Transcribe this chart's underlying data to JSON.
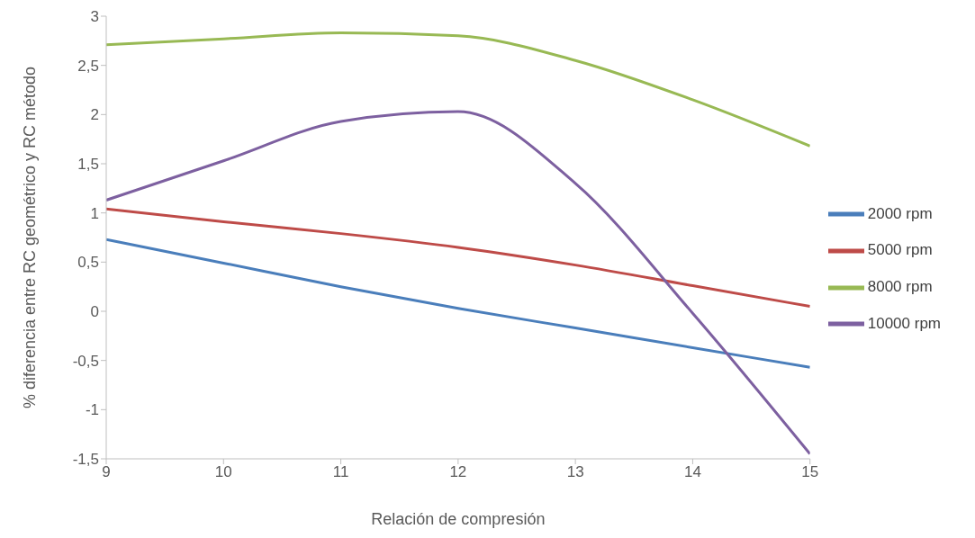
{
  "chart_data": {
    "type": "line",
    "xlabel": "Relación de compresión",
    "ylabel": "% diferencia entre RC geométrico y RC método",
    "x": [
      9,
      10,
      11,
      12,
      13,
      14,
      15
    ],
    "series": [
      {
        "name": "2000 rpm",
        "color": "#4a7ebb",
        "values": [
          0.73,
          0.49,
          0.25,
          0.03,
          -0.17,
          -0.37,
          -0.57
        ]
      },
      {
        "name": "5000 rpm",
        "color": "#be4b48",
        "values": [
          1.04,
          0.91,
          0.79,
          0.65,
          0.47,
          0.26,
          0.05
        ]
      },
      {
        "name": "8000 rpm",
        "color": "#98b954",
        "values": [
          2.71,
          2.77,
          2.83,
          2.8,
          2.55,
          2.15,
          1.68
        ]
      },
      {
        "name": "10000 rpm",
        "color": "#7d60a0",
        "values": [
          1.13,
          1.53,
          1.93,
          2.03,
          1.3,
          -0.02,
          -1.45
        ]
      }
    ],
    "xlim": [
      9,
      15
    ],
    "xticks": [
      9,
      10,
      11,
      12,
      13,
      14,
      15
    ],
    "ylim": [
      -1.5,
      3
    ],
    "yticks": [
      {
        "value": -1.5,
        "label": "-1,5"
      },
      {
        "value": -1,
        "label": "-1"
      },
      {
        "value": -0.5,
        "label": "-0,5"
      },
      0,
      {
        "value": 0.5,
        "label": "0,5"
      },
      1,
      {
        "value": 1.5,
        "label": "1,5"
      },
      2,
      {
        "value": 2.5,
        "label": "2,5"
      },
      3
    ],
    "grid": false,
    "legend": "right",
    "marker": "none",
    "line_style": "solid"
  }
}
